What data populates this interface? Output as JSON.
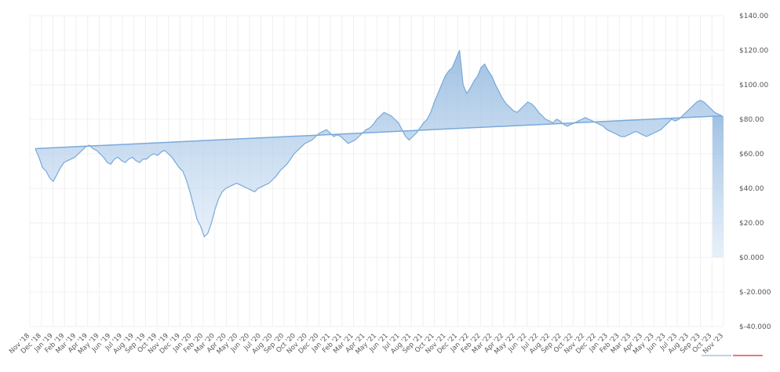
{
  "chart_data": {
    "type": "area",
    "ylim": [
      -40,
      140
    ],
    "yticks": [
      "$140.00",
      "$120.00",
      "$100.00",
      "$80.00",
      "$60.00",
      "$40.00",
      "$20.00",
      "$0.000",
      "$-20.000",
      "$-40.000"
    ],
    "ytick_values": [
      140,
      120,
      100,
      80,
      60,
      40,
      20,
      0,
      -20,
      -40
    ],
    "x_labels": [
      "Nov '18",
      "Dec '18",
      "Jan '19",
      "Feb '19",
      "Mar '19",
      "Apr '19",
      "May '19",
      "Jun '19",
      "Jul '19",
      "Aug '19",
      "Sep '19",
      "Oct '19",
      "Nov '19",
      "Dec '19",
      "Jan '20",
      "Feb '20",
      "Mar '20",
      "Apr '20",
      "May '20",
      "Jun '20",
      "Jul '20",
      "Aug '20",
      "Sep '20",
      "Oct '20",
      "Nov '20",
      "Dec '20",
      "Jan '21",
      "Feb '21",
      "Mar '21",
      "Apr '21",
      "May '21",
      "Jun '21",
      "Jul '21",
      "Aug '21",
      "Sep '21",
      "Oct '21",
      "Nov '21",
      "Dec '21",
      "Jan '22",
      "Feb '22",
      "Mar '22",
      "Apr '22",
      "May '22",
      "Jun '22",
      "Jul '22",
      "Aug '22",
      "Sep '22",
      "Oct '22",
      "Nov '22",
      "Dec '22",
      "Jan '23",
      "Feb '23",
      "Mar '23",
      "Apr '23",
      "May '23",
      "Jun '23",
      "Jul '23",
      "Aug '23",
      "Sep '23",
      "Oct '23",
      "Nov '23"
    ],
    "series": [
      {
        "values": [
          63,
          58,
          52,
          50,
          46,
          44,
          48,
          52,
          55,
          56,
          57,
          58,
          60,
          62,
          64,
          65,
          63,
          62,
          60,
          58,
          55,
          54,
          57,
          58,
          56,
          55,
          57,
          58,
          56,
          55,
          57,
          57,
          59,
          60,
          59,
          61,
          62,
          60,
          58,
          55,
          52,
          50,
          45,
          38,
          30,
          22,
          18,
          12,
          14,
          20,
          28,
          34,
          38,
          40,
          41,
          42,
          43,
          42,
          41,
          40,
          39,
          38,
          40,
          41,
          42,
          43,
          45,
          47,
          50,
          52,
          54,
          57,
          60,
          62,
          64,
          66,
          67,
          68,
          70,
          72,
          73,
          74,
          72,
          70,
          71,
          70,
          68,
          66,
          67,
          68,
          70,
          72,
          74,
          75,
          77,
          80,
          82,
          84,
          83,
          82,
          80,
          78,
          74,
          70,
          68,
          70,
          72,
          75,
          78,
          80,
          84,
          90,
          95,
          100,
          105,
          108,
          110,
          115,
          120,
          100,
          95,
          98,
          102,
          105,
          110,
          112,
          108,
          105,
          100,
          96,
          92,
          89,
          87,
          85,
          84,
          86,
          88,
          90,
          89,
          87,
          84,
          82,
          80,
          79,
          78,
          80,
          79,
          77,
          76,
          77,
          78,
          79,
          80,
          81,
          80,
          79,
          78,
          77,
          76,
          74,
          73,
          72,
          71,
          70,
          70,
          71,
          72,
          73,
          72,
          71,
          70,
          71,
          72,
          73,
          74,
          76,
          78,
          80,
          79,
          80,
          82,
          84,
          86,
          88,
          90,
          91,
          90,
          88,
          86,
          84,
          83,
          82
        ],
        "color": "#7aa9d9"
      }
    ]
  }
}
